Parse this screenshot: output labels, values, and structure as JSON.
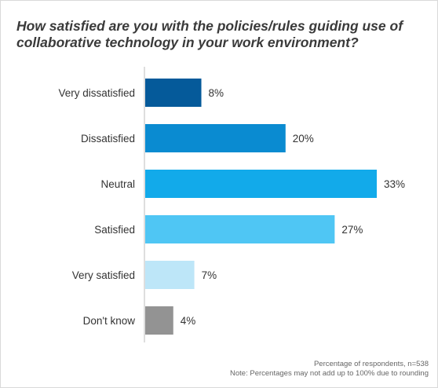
{
  "chart_data": {
    "type": "bar",
    "orientation": "horizontal",
    "title": "How satisfied are you with the policies/rules guiding use of collaborative technology in your work environment?",
    "categories": [
      "Very dissatisfied",
      "Dissatisfied",
      "Neutral",
      "Satisfied",
      "Very satisfied",
      "Don't know"
    ],
    "values": [
      8,
      20,
      33,
      27,
      7,
      4
    ],
    "value_labels": [
      "8%",
      "20%",
      "33%",
      "27%",
      "7%",
      "4%"
    ],
    "colors": [
      "#055a9a",
      "#0a8bd1",
      "#12aaea",
      "#4fc6f4",
      "#bde6f8",
      "#939393"
    ],
    "xlim": [
      0,
      33
    ],
    "xlabel": "",
    "ylabel": "",
    "grid": false,
    "legend": "none"
  },
  "footnotes": {
    "line1": "Percentage of respondents, n=538",
    "line2": "Note: Percentages may not add up to 100% due to rounding"
  }
}
